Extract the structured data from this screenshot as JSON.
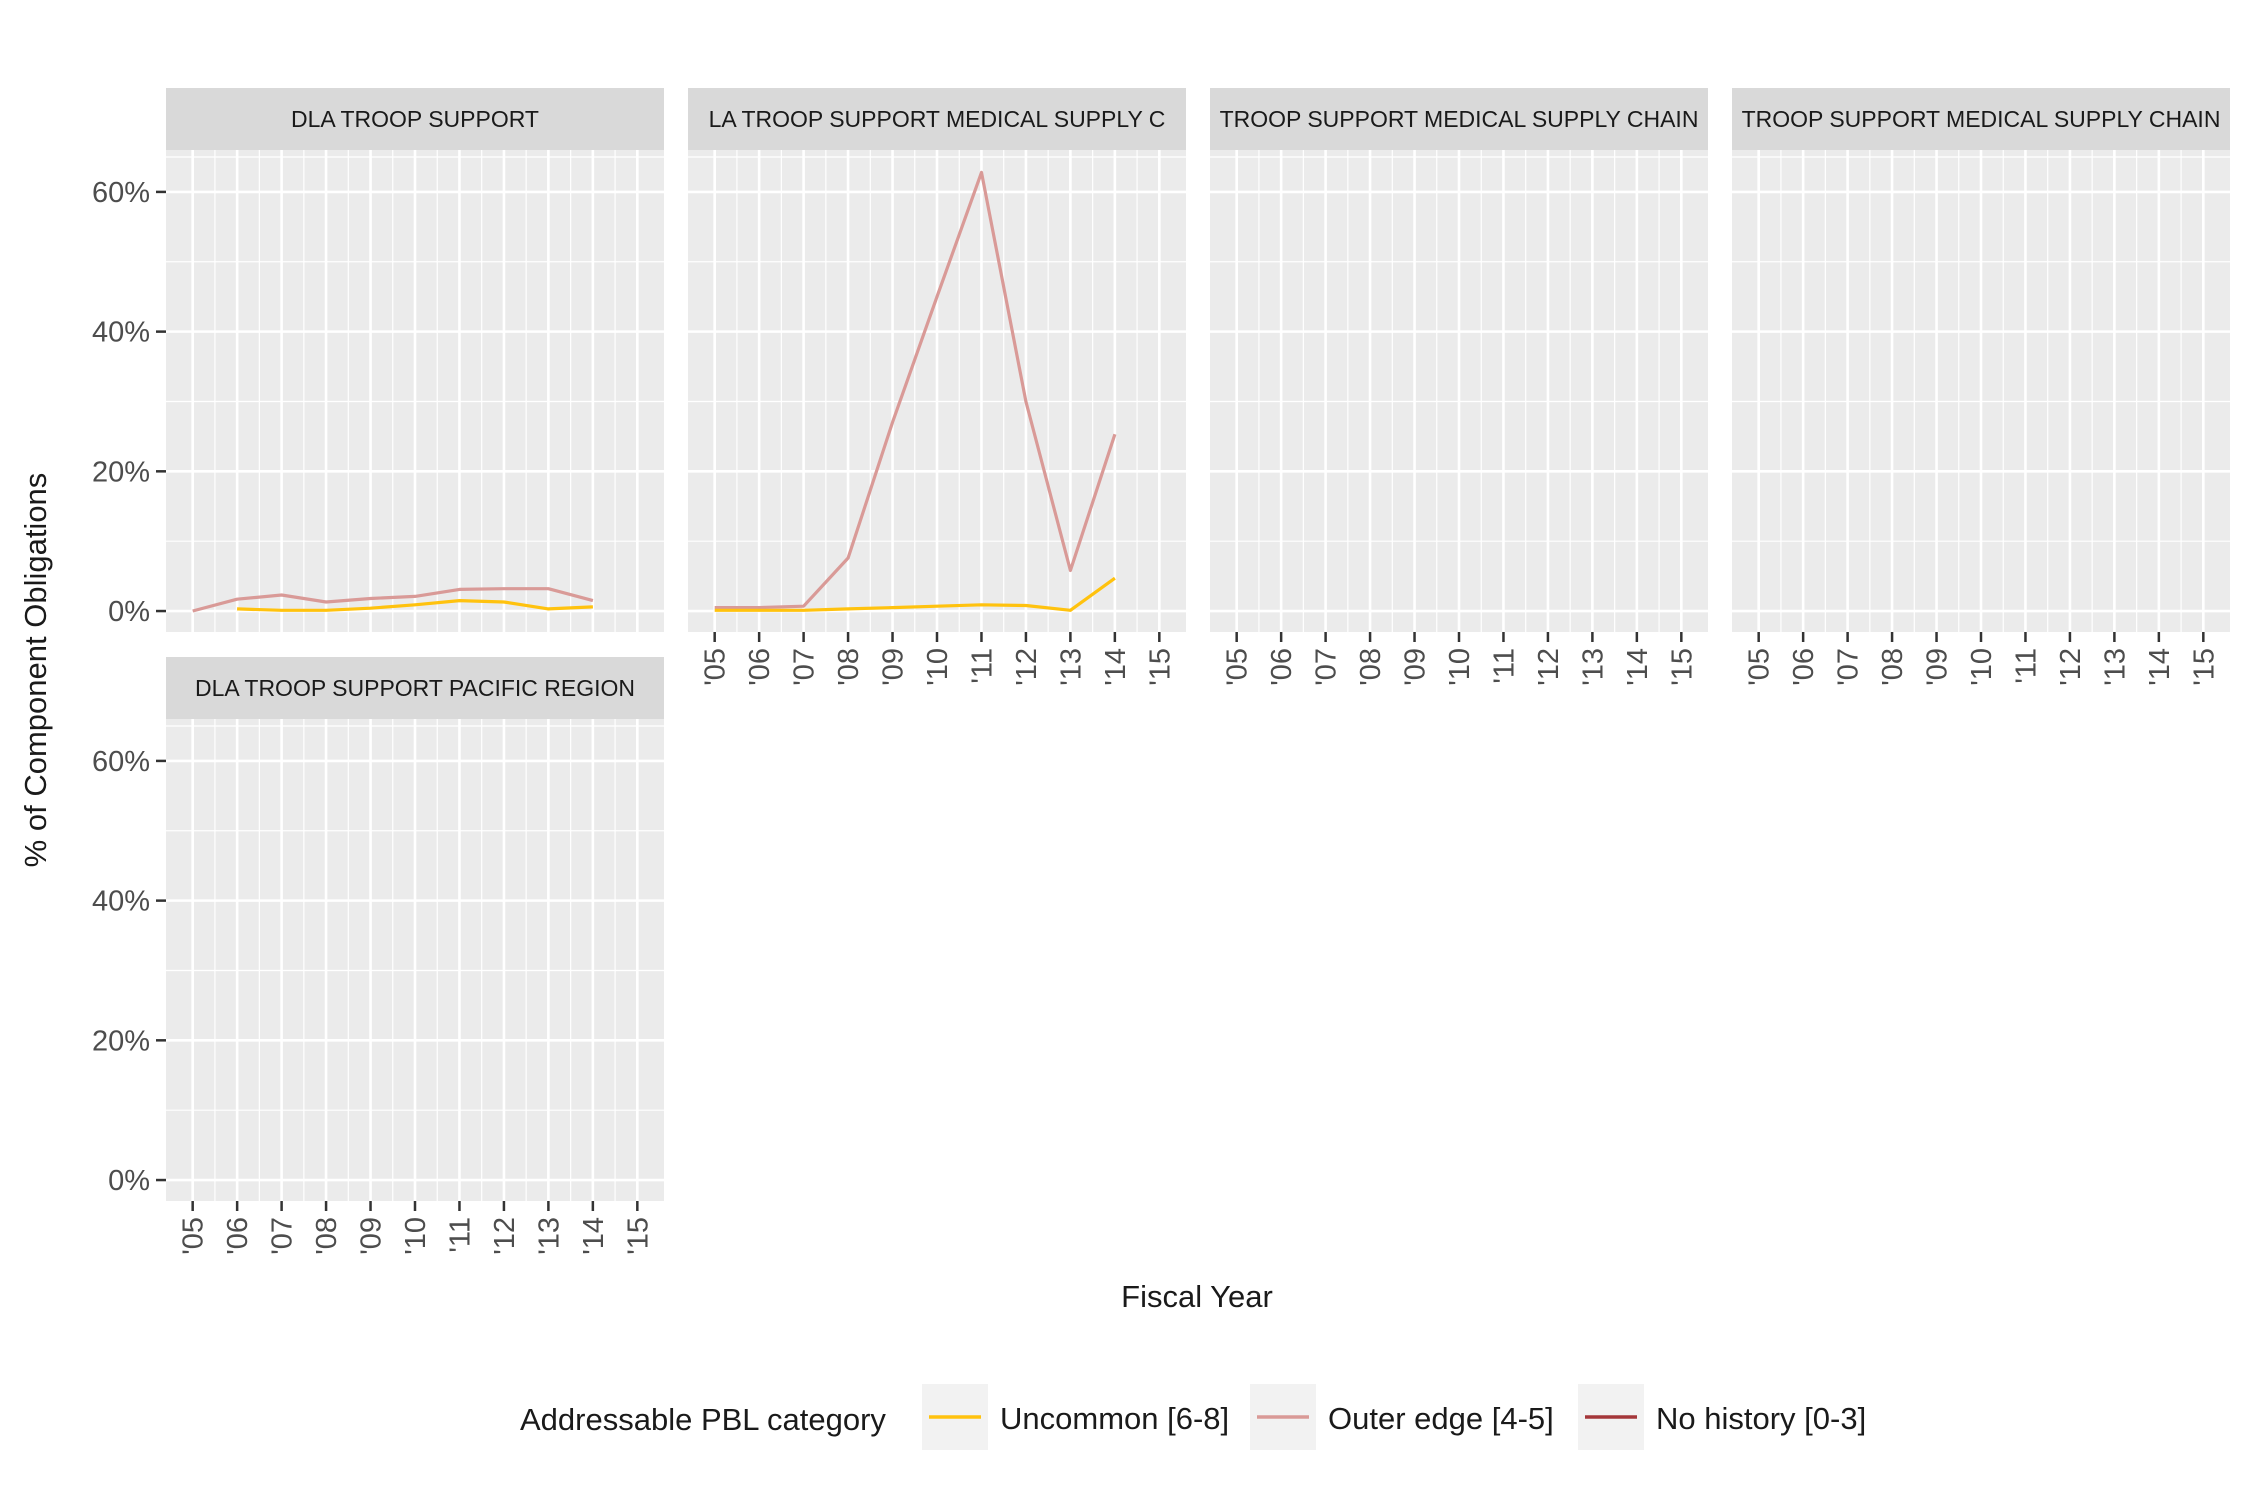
{
  "chart_data": {
    "type": "line",
    "xlabel": "Fiscal Year",
    "ylabel": "% of Component Obligations",
    "x": [
      "'05",
      "'06",
      "'07",
      "'08",
      "'09",
      "'10",
      "'11",
      "'12",
      "'13",
      "'14",
      "'15"
    ],
    "ylim": [
      -0.03,
      0.66
    ],
    "yticks": [
      "0%",
      "20%",
      "40%",
      "60%"
    ],
    "grid": true,
    "legend": {
      "title": "Addressable PBL category",
      "position": "bottom",
      "entries": [
        {
          "label": "Uncommon [6-8]",
          "color": "#FFC20E"
        },
        {
          "label": "Outer edge [4-5]",
          "color": "#D99A97"
        },
        {
          "label": "No history [0-3]",
          "color": "#A4373A"
        }
      ]
    },
    "panels": [
      {
        "strip": "DLA TROOP SUPPORT",
        "series": [
          {
            "name": "Outer edge [4-5]",
            "color": "#D99A97",
            "values": [
              0.0,
              0.017,
              0.023,
              0.013,
              0.018,
              0.021,
              0.031,
              0.032,
              0.032,
              0.015,
              null
            ]
          },
          {
            "name": "Uncommon [6-8]",
            "color": "#FFC20E",
            "values": [
              null,
              0.003,
              0.001,
              0.001,
              0.004,
              0.009,
              0.015,
              0.013,
              0.003,
              0.006,
              null
            ]
          }
        ]
      },
      {
        "strip": "LA TROOP SUPPORT MEDICAL SUPPLY C",
        "series": [
          {
            "name": "Outer edge [4-5]",
            "color": "#D99A97",
            "values": [
              0.005,
              0.005,
              0.007,
              0.076,
              0.27,
              0.45,
              0.628,
              0.3,
              0.058,
              0.253,
              null
            ]
          },
          {
            "name": "Uncommon [6-8]",
            "color": "#FFC20E",
            "values": [
              0.001,
              0.001,
              0.001,
              0.003,
              0.005,
              0.007,
              0.009,
              0.008,
              0.001,
              0.047,
              null
            ]
          }
        ]
      },
      {
        "strip": "TROOP SUPPORT MEDICAL SUPPLY CHAIN",
        "series": []
      },
      {
        "strip": "TROOP SUPPORT MEDICAL SUPPLY CHAIN",
        "series": []
      },
      {
        "strip": "DLA TROOP SUPPORT PACIFIC REGION",
        "series": []
      }
    ]
  }
}
